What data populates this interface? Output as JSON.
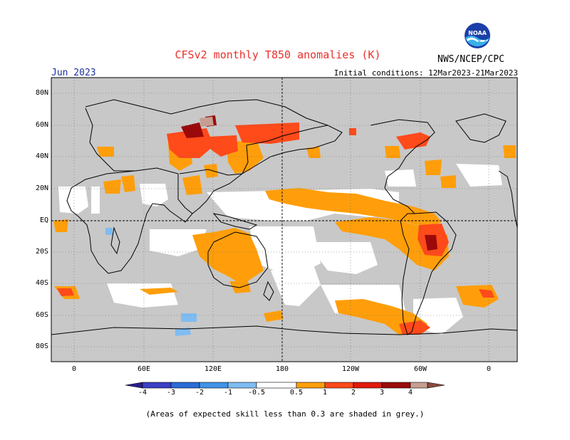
{
  "header": {
    "title": "CFSv2 monthly T850 anomalies (K)",
    "month": "Jun 2023",
    "initial_conditions": "Initial conditions: 12Mar2023-21Mar2023",
    "agency": "NWS/NCEP/CPC",
    "logo_text": "NOAA"
  },
  "axes": {
    "y_ticks": [
      "80N",
      "60N",
      "40N",
      "20N",
      "EQ",
      "20S",
      "40S",
      "60S",
      "80S"
    ],
    "x_ticks": [
      "0",
      "60E",
      "120E",
      "180",
      "120W",
      "60W",
      "0"
    ]
  },
  "colorbar": {
    "tick_labels": [
      "-4",
      "-3",
      "-2",
      "-1",
      "-0.5",
      "0.5",
      "1",
      "2",
      "3",
      "4"
    ],
    "colors": [
      "#2a1e8c",
      "#3a3fc4",
      "#2a6bd6",
      "#3f93e8",
      "#7fbcf2",
      "#ffffff",
      "#ff9e0a",
      "#ff4a1a",
      "#e0190c",
      "#9a0a0a",
      "#c79f92",
      "#8b4a3c"
    ]
  },
  "colors": {
    "skill_grey": "#c8c8c8",
    "land_line": "#000000",
    "title": "#e8312b",
    "month": "#1f2f9e"
  },
  "footnote": "(Areas of expected skill less than 0.3 are shaded in grey.)"
}
